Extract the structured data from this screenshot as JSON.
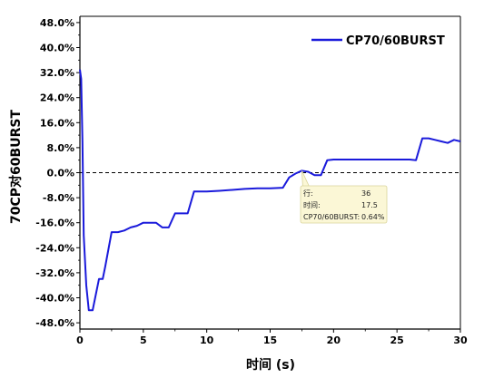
{
  "chart_data": {
    "type": "line",
    "xlabel": "时间 (s)",
    "ylabel": "70CP对60BURST",
    "xlim": [
      0,
      30
    ],
    "ylim": [
      -50,
      50
    ],
    "x_ticks": [
      0,
      5,
      10,
      15,
      20,
      25,
      30
    ],
    "x_tick_labels": [
      "0",
      "5",
      "10",
      "15",
      "20",
      "25",
      "30"
    ],
    "y_ticks": [
      -48,
      -40,
      -32,
      -24,
      -16,
      -8,
      0,
      8,
      16,
      24,
      32,
      40,
      48
    ],
    "y_tick_labels": [
      "-48.0%",
      "-40.0%",
      "-32.0%",
      "-24.0%",
      "-16.0%",
      "-8.0%",
      "0.0%",
      "8.0%",
      "16.0%",
      "24.0%",
      "32.0%",
      "40.0%",
      "48.0%"
    ],
    "reference_line_y": 0,
    "legend_position": "top-right",
    "grid": false,
    "series": [
      {
        "name": "CP70/60BURST",
        "color": "#1a1adb",
        "x": [
          0,
          0.1,
          0.2,
          0.3,
          0.5,
          0.7,
          1.0,
          1.2,
          1.5,
          1.8,
          2.0,
          2.5,
          3.0,
          3.5,
          4.0,
          4.5,
          5.0,
          5.5,
          6.0,
          6.5,
          7.0,
          7.5,
          8.0,
          8.5,
          9.0,
          9.5,
          10,
          11,
          12,
          13,
          14,
          15,
          16,
          16.5,
          17.0,
          17.5,
          18.0,
          18.5,
          19.0,
          19.5,
          20,
          21,
          22,
          23,
          24,
          25,
          26,
          26.5,
          27.0,
          27.5,
          28.0,
          28.5,
          29.0,
          29.5,
          30
        ],
        "values": [
          33,
          30,
          10,
          -20,
          -36,
          -44,
          -44,
          -40,
          -34,
          -34,
          -30,
          -19,
          -19,
          -18.5,
          -17.5,
          -17,
          -16,
          -16,
          -16,
          -17.5,
          -17.5,
          -13,
          -13,
          -13,
          -6,
          -6,
          -6,
          -5.8,
          -5.5,
          -5.2,
          -5.0,
          -5.0,
          -4.8,
          -1.5,
          -0.3,
          0.64,
          0.3,
          -0.8,
          -0.8,
          4.0,
          4.2,
          4.2,
          4.2,
          4.2,
          4.2,
          4.2,
          4.2,
          4.0,
          11.0,
          11.0,
          10.5,
          10.0,
          9.5,
          10.5,
          10.0
        ]
      }
    ]
  },
  "tooltip": {
    "row_label": "行:",
    "row_value": "36",
    "time_label": "时间:",
    "time_value": "17.5",
    "series_label": "CP70/60BURST:",
    "series_value": "0.64%",
    "anchor_x": 17.5,
    "anchor_y": 0.64
  }
}
